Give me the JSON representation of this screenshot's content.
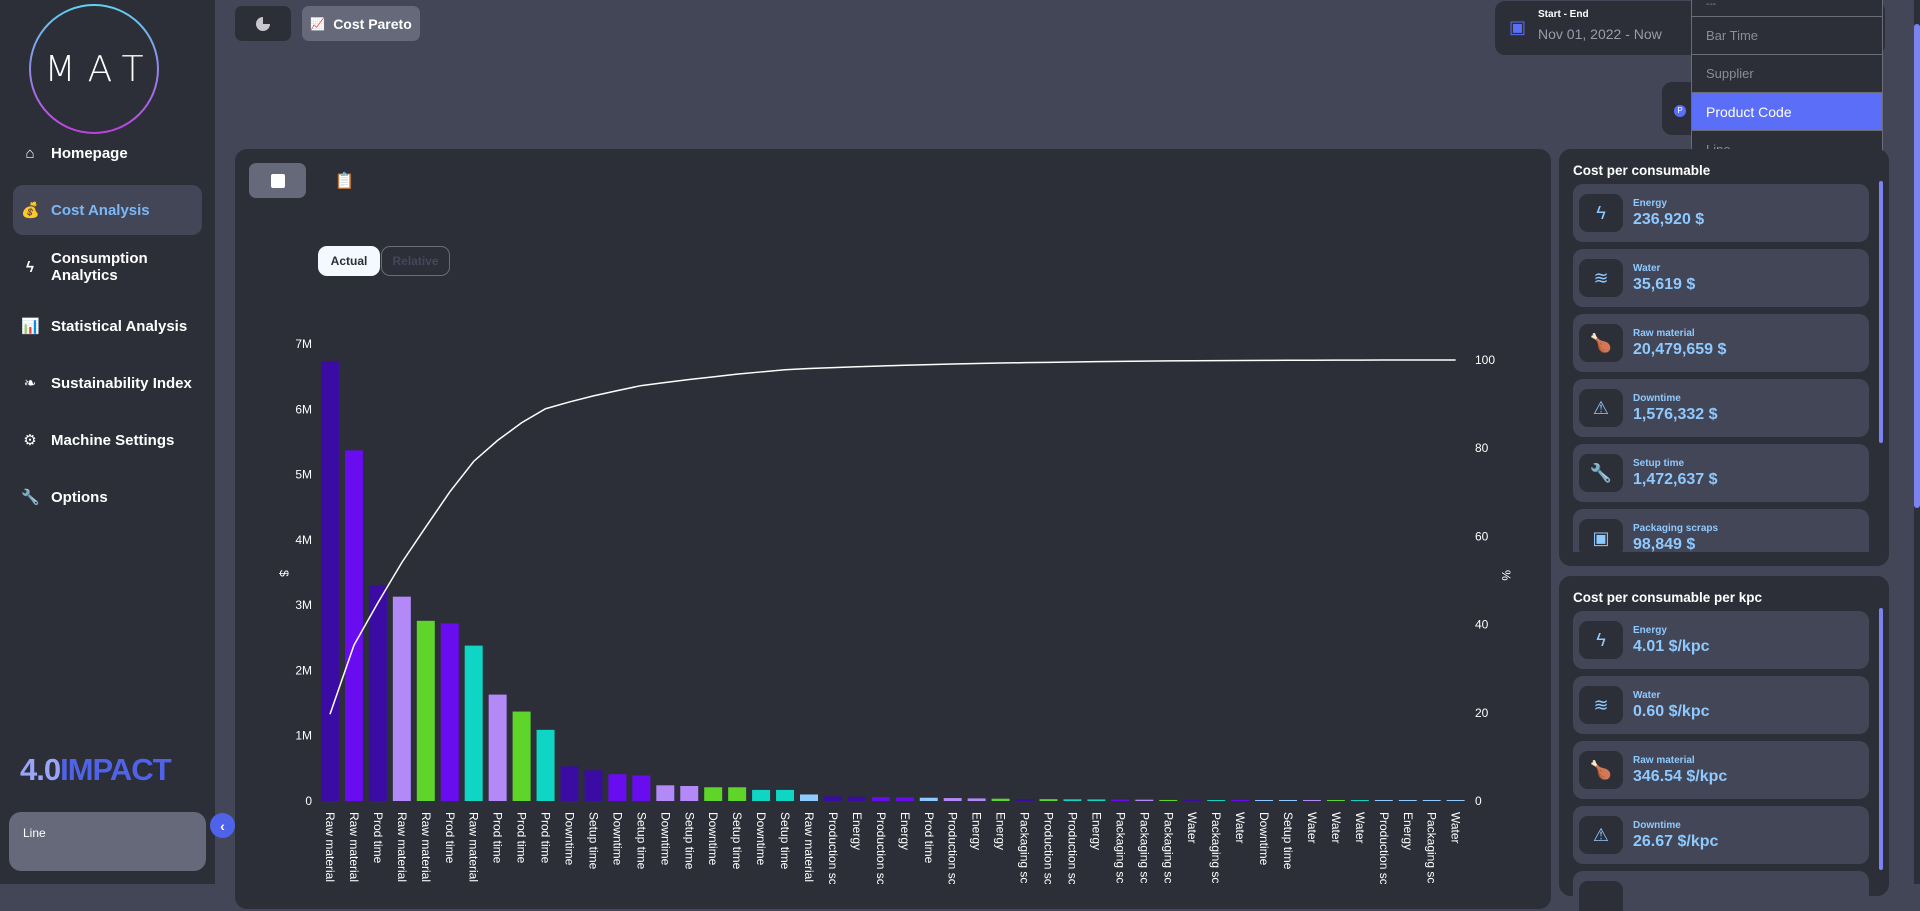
{
  "sidebar": {
    "logo": "MAT",
    "items": [
      {
        "label": "Homepage",
        "icon": "home-icon",
        "glyph": "⌂"
      },
      {
        "label": "Cost Analysis",
        "icon": "money-bag-icon",
        "glyph": "💰"
      },
      {
        "label": "Consumption Analytics",
        "icon": "lightning-icon",
        "glyph": "ϟ"
      },
      {
        "label": "Statistical Analysis",
        "icon": "chart-icon",
        "glyph": "📊"
      },
      {
        "label": "Sustainability Index",
        "icon": "leaf-icon",
        "glyph": "❧"
      },
      {
        "label": "Machine Settings",
        "icon": "gear-icon",
        "glyph": "⚙"
      },
      {
        "label": "Options",
        "icon": "wrench-icon",
        "glyph": "🔧"
      }
    ],
    "brand_a": "4.0",
    "brand_b": "IMPACT",
    "line_label": "Line"
  },
  "tabs": {
    "pie": "pie-chart-icon",
    "cost_pareto": "Cost Pareto"
  },
  "date": {
    "label": "Start - End",
    "value": "Nov 01, 2022 - Now"
  },
  "dropdown": {
    "options": [
      "---",
      "Bar Time",
      "Supplier",
      "Product Code",
      "Line"
    ],
    "selected": "Product Code"
  },
  "chart_controls": {
    "actual": "Actual",
    "relative": "Relative",
    "mode": "Actual"
  },
  "chart_data": {
    "type": "bar",
    "ylabel": "$",
    "y2label": "%",
    "ylim": [
      0,
      7000000
    ],
    "y2lim": [
      0,
      100
    ],
    "yticks": [
      "0",
      "1M",
      "2M",
      "3M",
      "4M",
      "5M",
      "6M",
      "7M"
    ],
    "y2ticks": [
      "0",
      "20",
      "40",
      "60",
      "80",
      "100"
    ],
    "categories": [
      "Raw material",
      "Raw material",
      "Prod time",
      "Raw material",
      "Raw material",
      "Prod time",
      "Raw material",
      "Prod time",
      "Prod time",
      "Prod time",
      "Downtime",
      "Setup time",
      "Downtime",
      "Setup time",
      "Downtime",
      "Setup time",
      "Downtime",
      "Setup time",
      "Downtime",
      "Setup time",
      "Raw material",
      "Production sc",
      "Energy",
      "Production sc",
      "Energy",
      "Prod time",
      "Production sc",
      "Energy",
      "Energy",
      "Packaging sc",
      "Production sc",
      "Production sc",
      "Energy",
      "Packaging sc",
      "Packaging sc",
      "Packaging sc",
      "Water",
      "Packaging sc",
      "Water",
      "Downtime",
      "Setup time",
      "Water",
      "Water",
      "Water",
      "Production sc",
      "Energy",
      "Packaging sc",
      "Water"
    ],
    "values": [
      6740000,
      5370000,
      3300000,
      3130000,
      2760000,
      2720000,
      2380000,
      1630000,
      1370000,
      1090000,
      530000,
      470000,
      410000,
      390000,
      240000,
      230000,
      210000,
      210000,
      170000,
      170000,
      100000,
      70000,
      65000,
      60000,
      55000,
      50000,
      45000,
      40000,
      35000,
      30000,
      28000,
      26000,
      24000,
      22000,
      20000,
      16000,
      13000,
      12000,
      10000,
      8000,
      7000,
      6000,
      5000,
      4000,
      3000,
      2000,
      1000,
      1000
    ],
    "colors": [
      "#3a0ca3",
      "#6a0cf0",
      "#3a0ca3",
      "#b388f7",
      "#5fd52a",
      "#6a0cf0",
      "#0fd6c4",
      "#b388f7",
      "#5fd52a",
      "#0fd6c4",
      "#3a0ca3",
      "#3a0ca3",
      "#6a0cf0",
      "#6a0cf0",
      "#b388f7",
      "#b388f7",
      "#5fd52a",
      "#5fd52a",
      "#0fd6c4",
      "#0fd6c4",
      "#8ec9ff",
      "#3a0ca3",
      "#3a0ca3",
      "#6a0cf0",
      "#6a0cf0",
      "#8ec9ff",
      "#b388f7",
      "#b388f7",
      "#5fd52a",
      "#3a0ca3",
      "#5fd52a",
      "#0fd6c4",
      "#0fd6c4",
      "#6a0cf0",
      "#b388f7",
      "#5fd52a",
      "#3a0ca3",
      "#0fd6c4",
      "#6a0cf0",
      "#8ec9ff",
      "#8ec9ff",
      "#b388f7",
      "#5fd52a",
      "#0fd6c4",
      "#8ec9ff",
      "#8ec9ff",
      "#8ec9ff",
      "#8ec9ff"
    ],
    "cumulative_line": "cumulative percent",
    "grid": false
  },
  "cost_per_consumable": {
    "title": "Cost per consumable",
    "items": [
      {
        "name": "Energy",
        "value": "236,920 $",
        "icon": "lightning-icon",
        "glyph": "ϟ"
      },
      {
        "name": "Water",
        "value": "35,619 $",
        "icon": "water-icon",
        "glyph": "≋"
      },
      {
        "name": "Raw material",
        "value": "20,479,659 $",
        "icon": "chicken-icon",
        "glyph": "🍗"
      },
      {
        "name": "Downtime",
        "value": "1,576,332 $",
        "icon": "warning-icon",
        "glyph": "⚠"
      },
      {
        "name": "Setup time",
        "value": "1,472,637 $",
        "icon": "wrench-icon",
        "glyph": "🔧"
      },
      {
        "name": "Packaging scraps",
        "value": "98,849 $",
        "icon": "box-icon",
        "glyph": "▣"
      }
    ]
  },
  "cost_per_kpc": {
    "title": "Cost per consumable per kpc",
    "items": [
      {
        "name": "Energy",
        "value": "4.01 $/kpc",
        "icon": "lightning-icon",
        "glyph": "ϟ"
      },
      {
        "name": "Water",
        "value": "0.60 $/kpc",
        "icon": "water-icon",
        "glyph": "≋"
      },
      {
        "name": "Raw material",
        "value": "346.54 $/kpc",
        "icon": "chicken-icon",
        "glyph": "🍗"
      },
      {
        "name": "Downtime",
        "value": "26.67 $/kpc",
        "icon": "warning-icon",
        "glyph": "⚠"
      },
      {
        "name": "",
        "value": "",
        "icon": "unknown-icon",
        "glyph": ""
      }
    ]
  }
}
